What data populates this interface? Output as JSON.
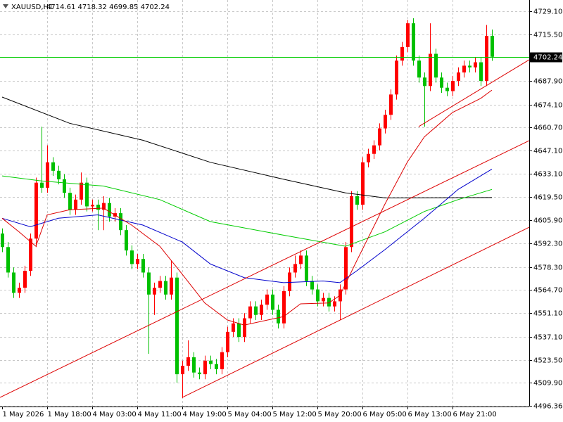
{
  "chart_data": {
    "type": "candlestick",
    "title": "XAUUSD,H1",
    "header_prices": "4714.61 4718.32 4699.85 4702.24",
    "up_color": "#ff0000",
    "down_color": "#00c000",
    "grid": true,
    "xlim": [
      -0.375,
      93.625
    ],
    "ylim": [
      4495.95,
      4735.74
    ],
    "yticks": [
      {
        "value": 4729.1,
        "label": "4729.10"
      },
      {
        "value": 4715.5,
        "label": "4715.50"
      },
      {
        "value": 4687.9,
        "label": "4687.90"
      },
      {
        "value": 4674.1,
        "label": "4674.10"
      },
      {
        "value": 4660.7,
        "label": "4660.70"
      },
      {
        "value": 4647.1,
        "label": "4647.10"
      },
      {
        "value": 4633.1,
        "label": "4633.10"
      },
      {
        "value": 4619.5,
        "label": "4619.50"
      },
      {
        "value": 4605.9,
        "label": "4605.90"
      },
      {
        "value": 4592.3,
        "label": "4592.30"
      },
      {
        "value": 4578.3,
        "label": "4578.30"
      },
      {
        "value": 4564.7,
        "label": "4564.70"
      },
      {
        "value": 4551.1,
        "label": "4551.10"
      },
      {
        "value": 4537.1,
        "label": "4537.10"
      },
      {
        "value": 4523.5,
        "label": "4523.50"
      },
      {
        "value": 4509.9,
        "label": "4509.90"
      },
      4496.36
    ],
    "categories": [
      "1 May 2026",
      null,
      null,
      null,
      null,
      null,
      null,
      null,
      "1 May 18:00",
      null,
      null,
      null,
      null,
      null,
      null,
      null,
      "4 May 03:00",
      null,
      null,
      null,
      null,
      null,
      null,
      null,
      "4 May 11:00",
      null,
      null,
      null,
      null,
      null,
      null,
      null,
      "4 May 19:00",
      null,
      null,
      null,
      null,
      null,
      null,
      null,
      "5 May 04:00",
      null,
      null,
      null,
      null,
      null,
      null,
      null,
      "5 May 12:00",
      null,
      null,
      null,
      null,
      null,
      null,
      null,
      "5 May 20:00",
      null,
      null,
      null,
      null,
      null,
      null,
      null,
      "6 May 05:00",
      null,
      null,
      null,
      null,
      null,
      null,
      null,
      "6 May 13:00",
      null,
      null,
      null,
      null,
      null,
      null,
      null,
      "6 May 21:00",
      null,
      null,
      null,
      null,
      null,
      null,
      null
    ],
    "open": [
      4598,
      4590,
      4575,
      4563,
      4566,
      4576,
      4595,
      4628,
      4625,
      4640,
      4635,
      4630,
      4622,
      4612,
      4618,
      4628,
      4614,
      4615,
      4612,
      4616,
      4608,
      4610,
      4600,
      4588,
      4580,
      4583,
      4575,
      4562,
      4566,
      4570,
      4562,
      4572,
      4515,
      4520,
      4525,
      4516,
      4515,
      4523,
      4521,
      4518,
      4528,
      4540,
      4545,
      4537,
      4548,
      4555,
      4550,
      4556,
      4562,
      4553,
      4545,
      4564,
      4575,
      4580,
      4585,
      4570,
      4565,
      4558,
      4560,
      4555,
      4558,
      4565,
      4590,
      4620,
      4615,
      4640,
      4645,
      4650,
      4660,
      4668,
      4680,
      4700,
      4708,
      4722,
      4700,
      4690,
      4685,
      4704,
      4690,
      4684,
      4682,
      4688,
      4693,
      4697,
      4696,
      4699,
      4688,
      4714.61
    ],
    "high": [
      4601,
      4593,
      4578,
      4569,
      4579,
      4598,
      4631,
      4661,
      4650,
      4643,
      4638,
      4633,
      4625,
      4621,
      4634,
      4631,
      4618,
      4618,
      4620,
      4619,
      4613,
      4613,
      4603,
      4591,
      4586,
      4586,
      4578,
      4569,
      4573,
      4573,
      4582,
      4575,
      4523,
      4535,
      4528,
      4519,
      4526,
      4526,
      4524,
      4531,
      4543,
      4548,
      4548,
      4551,
      4558,
      4558,
      4559,
      4565,
      4565,
      4556,
      4567,
      4578,
      4585,
      4588,
      4588,
      4573,
      4568,
      4563,
      4563,
      4561,
      4568,
      4593,
      4623,
      4623,
      4643,
      4648,
      4653,
      4663,
      4671,
      4683,
      4703,
      4711,
      4724,
      4725,
      4703,
      4693,
      4722,
      4707,
      4693,
      4687,
      4691,
      4696,
      4700,
      4700,
      4702,
      4702,
      4721,
      4718.32
    ],
    "low": [
      4587,
      4572,
      4560,
      4560,
      4563,
      4573,
      4590,
      4622,
      4622,
      4632,
      4627,
      4619,
      4609,
      4609,
      4615,
      4611,
      4611,
      4600,
      4600,
      4605,
      4605,
      4597,
      4585,
      4577,
      4577,
      4572,
      4527,
      4550,
      4563,
      4559,
      4559,
      4510,
      4501,
      4517,
      4513,
      4512,
      4512,
      4518,
      4515,
      4515,
      4525,
      4537,
      4534,
      4534,
      4545,
      4547,
      4547,
      4553,
      4550,
      4542,
      4542,
      4561,
      4572,
      4577,
      4567,
      4562,
      4555,
      4555,
      4552,
      4552,
      4547,
      4562,
      4587,
      4612,
      4612,
      4637,
      4642,
      4647,
      4657,
      4665,
      4677,
      4697,
      4705,
      4697,
      4687,
      4661,
      4682,
      4687,
      4681,
      4679,
      4679,
      4685,
      4690,
      4693,
      4693,
      4685,
      4685,
      4699.85
    ],
    "close": [
      4590,
      4575,
      4563,
      4566,
      4576,
      4595,
      4628,
      4625,
      4640,
      4635,
      4630,
      4622,
      4612,
      4618,
      4628,
      4614,
      4615,
      4612,
      4616,
      4608,
      4610,
      4600,
      4588,
      4580,
      4583,
      4575,
      4562,
      4566,
      4570,
      4562,
      4572,
      4515,
      4520,
      4525,
      4516,
      4515,
      4523,
      4521,
      4518,
      4528,
      4540,
      4545,
      4537,
      4548,
      4555,
      4550,
      4556,
      4562,
      4553,
      4545,
      4564,
      4575,
      4580,
      4585,
      4570,
      4565,
      4558,
      4560,
      4555,
      4558,
      4565,
      4590,
      4620,
      4615,
      4640,
      4645,
      4650,
      4660,
      4668,
      4680,
      4700,
      4708,
      4722,
      4700,
      4690,
      4685,
      4704,
      4690,
      4684,
      4682,
      4688,
      4693,
      4697,
      4696,
      4699,
      4688,
      4714.61,
      4702.24
    ],
    "lines": [
      {
        "color": "#000000",
        "x": [
          0,
          12,
          25,
          37,
          50,
          61,
          68,
          87
        ],
        "values": [
          4678.5,
          4663,
          4653,
          4640,
          4630,
          4622,
          4619,
          4619.2
        ]
      },
      {
        "color": "#00cc00",
        "x": [
          0,
          7,
          18,
          28,
          37,
          50,
          61,
          68,
          75,
          81,
          87
        ],
        "values": [
          4632,
          4629,
          4626,
          4618,
          4605,
          4597,
          4590.5,
          4599,
          4611,
          4618,
          4624
        ]
      },
      {
        "color": "#0000cc",
        "x": [
          0,
          5,
          10,
          17,
          25,
          32,
          37,
          43,
          50,
          57,
          60,
          63,
          68,
          75,
          81,
          87
        ],
        "values": [
          4607,
          4602,
          4607,
          4609,
          4603,
          4593,
          4580,
          4572,
          4569,
          4570,
          4569,
          4576,
          4588.5,
          4607,
          4624,
          4636
        ]
      },
      {
        "color": "#dd0000",
        "x": [
          0,
          3,
          6,
          8,
          12,
          18,
          23,
          28,
          32,
          36,
          40,
          43,
          50,
          53,
          58,
          60,
          63,
          68,
          72,
          75,
          80,
          85,
          87
        ],
        "values": [
          4607,
          4599,
          4590.5,
          4609,
          4612,
          4613,
          4603,
          4590.5,
          4574,
          4557,
          4547,
          4544,
          4549,
          4556.5,
          4557,
          4561.5,
          4582,
          4615.4,
          4640.3,
          4655,
          4669.4,
          4677.7,
          4682.6
        ]
      },
      {
        "color": "#dd0000",
        "x": [
          -0.375,
          93.625
        ],
        "values": [
          4501.3,
          4652.8
        ]
      },
      {
        "color": "#dd0000",
        "x": [
          32,
          93.625
        ],
        "values": [
          4501.3,
          4601.7
        ]
      },
      {
        "color": "#dd0000",
        "x": [
          74,
          93.625
        ],
        "values": [
          4661.1,
          4700.5
        ]
      }
    ],
    "price_line_color": "#00cc00"
  }
}
